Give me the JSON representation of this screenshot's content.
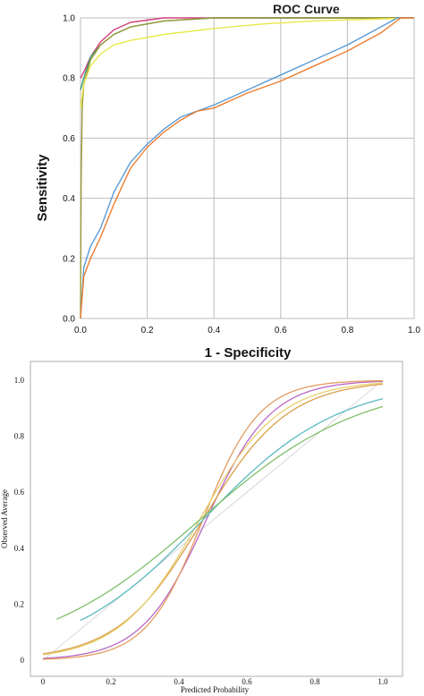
{
  "chart_data": [
    {
      "type": "line",
      "title": "ROC Curve",
      "xlabel": "1 - Specificity",
      "ylabel": "Sensitivity",
      "xlim": [
        0,
        1
      ],
      "ylim": [
        0,
        1
      ],
      "grid": true,
      "xticks": [
        "0.0",
        "0.2",
        "0.4",
        "0.6",
        "0.8",
        "1.0"
      ],
      "yticks": [
        "0.0",
        "0.2",
        "0.4",
        "0.6",
        "0.8",
        "1.0"
      ],
      "series": [
        {
          "color": "#d0407a",
          "points": [
            [
              0,
              0.8
            ],
            [
              0.01,
              0.82
            ],
            [
              0.03,
              0.87
            ],
            [
              0.06,
              0.92
            ],
            [
              0.1,
              0.96
            ],
            [
              0.15,
              0.985
            ],
            [
              0.25,
              1.0
            ],
            [
              1.0,
              1.0
            ]
          ]
        },
        {
          "color": "#3c9a78",
          "points": [
            [
              0,
              0.76
            ],
            [
              0.01,
              0.8
            ],
            [
              0.03,
              0.87
            ],
            [
              0.06,
              0.91
            ],
            [
              0.1,
              0.945
            ],
            [
              0.15,
              0.97
            ],
            [
              0.25,
              0.99
            ],
            [
              0.4,
              1.0
            ],
            [
              1.0,
              1.0
            ]
          ]
        },
        {
          "color": "#9a9a3a",
          "points": [
            [
              0,
              0.0
            ],
            [
              0.002,
              0.45
            ],
            [
              0.005,
              0.7
            ],
            [
              0.01,
              0.78
            ],
            [
              0.03,
              0.86
            ],
            [
              0.06,
              0.91
            ],
            [
              0.1,
              0.945
            ],
            [
              0.15,
              0.97
            ],
            [
              0.25,
              0.99
            ],
            [
              0.4,
              1.0
            ],
            [
              1.0,
              1.0
            ]
          ]
        },
        {
          "color": "#e8e84a",
          "points": [
            [
              0,
              0.7
            ],
            [
              0.01,
              0.78
            ],
            [
              0.03,
              0.84
            ],
            [
              0.06,
              0.88
            ],
            [
              0.1,
              0.91
            ],
            [
              0.15,
              0.925
            ],
            [
              0.25,
              0.945
            ],
            [
              0.4,
              0.965
            ],
            [
              0.55,
              0.98
            ],
            [
              0.7,
              0.99
            ],
            [
              1.0,
              1.0
            ]
          ]
        },
        {
          "color": "#5b9bd5",
          "points": [
            [
              0,
              0.0
            ],
            [
              0.01,
              0.17
            ],
            [
              0.03,
              0.24
            ],
            [
              0.06,
              0.3
            ],
            [
              0.1,
              0.42
            ],
            [
              0.15,
              0.52
            ],
            [
              0.2,
              0.58
            ],
            [
              0.25,
              0.63
            ],
            [
              0.3,
              0.67
            ],
            [
              0.35,
              0.69
            ],
            [
              0.4,
              0.71
            ],
            [
              0.5,
              0.76
            ],
            [
              0.6,
              0.81
            ],
            [
              0.7,
              0.86
            ],
            [
              0.8,
              0.91
            ],
            [
              0.9,
              0.97
            ],
            [
              0.95,
              1.0
            ],
            [
              1.0,
              1.0
            ]
          ]
        },
        {
          "color": "#ed7d31",
          "points": [
            [
              0,
              0.0
            ],
            [
              0.01,
              0.14
            ],
            [
              0.03,
              0.2
            ],
            [
              0.06,
              0.27
            ],
            [
              0.1,
              0.38
            ],
            [
              0.15,
              0.5
            ],
            [
              0.2,
              0.57
            ],
            [
              0.25,
              0.62
            ],
            [
              0.3,
              0.66
            ],
            [
              0.35,
              0.69
            ],
            [
              0.4,
              0.7
            ],
            [
              0.5,
              0.75
            ],
            [
              0.6,
              0.79
            ],
            [
              0.7,
              0.84
            ],
            [
              0.8,
              0.89
            ],
            [
              0.9,
              0.95
            ],
            [
              0.96,
              1.0
            ],
            [
              1.0,
              1.0
            ]
          ]
        }
      ]
    },
    {
      "type": "line",
      "title": "",
      "xlabel": "Predicted Probability",
      "ylabel": "Observed Average",
      "xlim": [
        0,
        1
      ],
      "ylim": [
        0,
        1
      ],
      "grid": false,
      "xticks": [
        "0",
        "0.2",
        "0.4",
        "0.6",
        "0.8",
        "1.0"
      ],
      "yticks": [
        "0",
        "0.2",
        "0.4",
        "0.6",
        "0.8",
        "1.0"
      ],
      "diagonal_color": "#cfcfcf",
      "series": [
        {
          "color": "#b968c7",
          "logistic": {
            "k": 10.5,
            "x0": 0.48
          },
          "x_range": [
            0,
            1
          ]
        },
        {
          "color": "#e49c62",
          "logistic": {
            "k": 12.0,
            "x0": 0.47
          },
          "x_range": [
            0,
            1
          ]
        },
        {
          "color": "#d9a04a",
          "logistic": {
            "k": 8.0,
            "x0": 0.47
          },
          "x_range": [
            0,
            1
          ]
        },
        {
          "color": "#e8d070",
          "logistic": {
            "k": 8.5,
            "x0": 0.46
          },
          "x_range": [
            0,
            1
          ]
        },
        {
          "color": "#5bbac0",
          "logistic": {
            "k": 5.0,
            "x0": 0.47
          },
          "x_range": [
            0.11,
            1
          ]
        },
        {
          "color": "#7fc06a",
          "logistic": {
            "k": 4.2,
            "x0": 0.46
          },
          "x_range": [
            0.04,
            1
          ]
        }
      ]
    }
  ]
}
